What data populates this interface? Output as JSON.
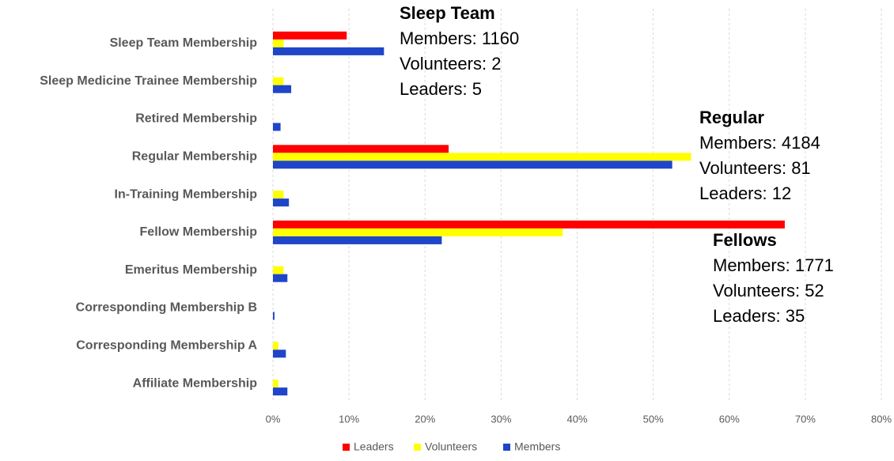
{
  "chart_data": {
    "type": "hbar",
    "categories": [
      "Sleep Team Membership",
      "Sleep Medicine Trainee Membership",
      "Retired Membership",
      "Regular Membership",
      "In-Training Membership",
      "Fellow Membership",
      "Emeritus Membership",
      "Corresponding Membership B",
      "Corresponding Membership A",
      "Affiliate Membership"
    ],
    "series": [
      {
        "name": "Leaders",
        "color": "#ff0000",
        "values": [
          9.7,
          0,
          0,
          23.1,
          0,
          67.3,
          0,
          0,
          0,
          0
        ]
      },
      {
        "name": "Volunteers",
        "color": "#ffff00",
        "values": [
          1.4,
          1.4,
          0,
          55.0,
          1.4,
          38.1,
          1.4,
          0,
          0.7,
          0.7
        ]
      },
      {
        "name": "Members",
        "color": "#1f45c8",
        "values": [
          14.6,
          2.4,
          1.0,
          52.5,
          2.1,
          22.2,
          1.9,
          0.2,
          1.7,
          1.9
        ]
      }
    ],
    "xlim": [
      0,
      80
    ],
    "xticks": [
      {
        "value": 0,
        "label": "0%"
      },
      {
        "value": 10,
        "label": "10%"
      },
      {
        "value": 20,
        "label": "20%"
      },
      {
        "value": 30,
        "label": "30%"
      },
      {
        "value": 40,
        "label": "40%"
      },
      {
        "value": 50,
        "label": "50%"
      },
      {
        "value": 60,
        "label": "60%"
      },
      {
        "value": 70,
        "label": "70%"
      },
      {
        "value": 80,
        "label": "80%"
      }
    ],
    "grid": true,
    "legend": "bottom",
    "annotations": [
      {
        "title": "Sleep Team",
        "lines": [
          "Members: 1160",
          "Volunteers: 2",
          "Leaders: 5"
        ]
      },
      {
        "title": "Regular",
        "lines": [
          "Members: 4184",
          "Volunteers: 81",
          "Leaders: 12"
        ]
      },
      {
        "title": "Fellows",
        "lines": [
          "Members: 1771",
          "Volunteers: 52",
          "Leaders: 35"
        ]
      }
    ]
  }
}
